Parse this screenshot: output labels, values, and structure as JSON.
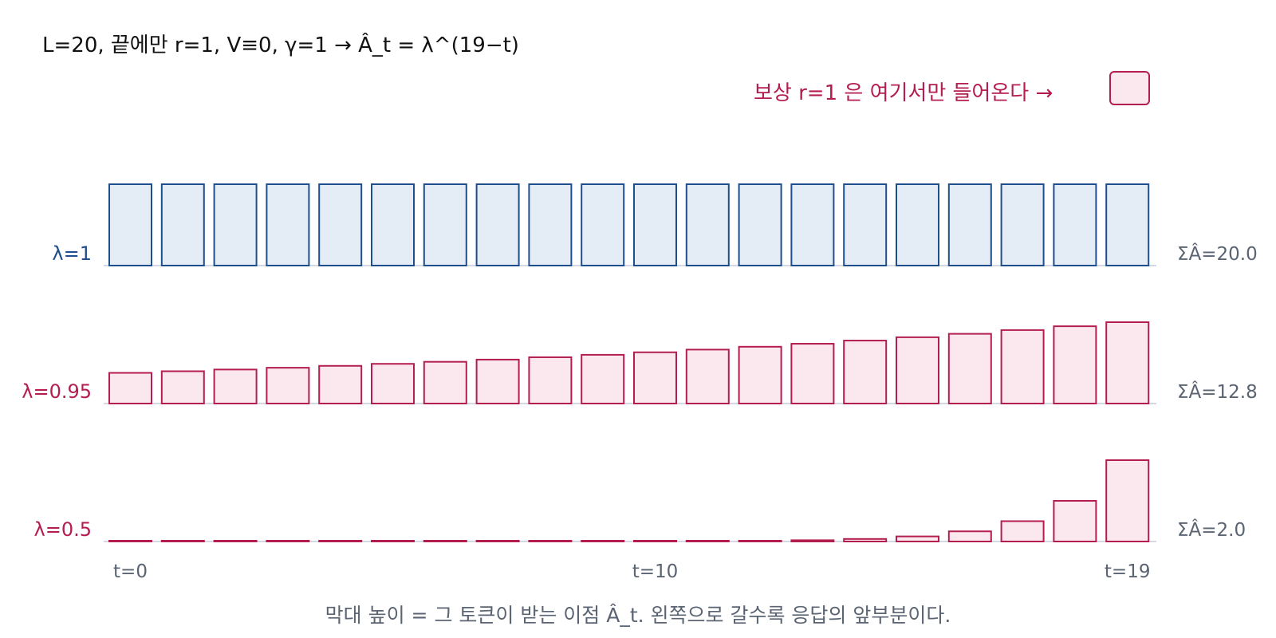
{
  "title": "L=20, 끝에만 r=1, V≡0, γ=1 → Â_t = λ^(19−t)",
  "reward_note": "보상 r=1 은 여기서만 들어온다 →",
  "caption": "막대 높이 = 그 토큰이 받는 이점 Â_t. 왼쪽으로 갈수록 응답의 앞부분이다.",
  "colors": {
    "blue_stroke": "#1f4e8c",
    "blue_fill": "#e4ecf6",
    "red_stroke": "#b41e4f",
    "red_fill": "#fbe7ee",
    "baseline": "#d3d8e2",
    "sum_text": "#5a6472",
    "axis_text": "#5a6472"
  },
  "chart_data": {
    "type": "bar",
    "x": [
      0,
      1,
      2,
      3,
      4,
      5,
      6,
      7,
      8,
      9,
      10,
      11,
      12,
      13,
      14,
      15,
      16,
      17,
      18,
      19
    ],
    "x_tick_labels": [
      {
        "x": 0,
        "label": "t=0"
      },
      {
        "x": 10,
        "label": "t=10"
      },
      {
        "x": 19,
        "label": "t=19"
      }
    ],
    "ylim": [
      0,
      1
    ],
    "grid": false,
    "series": [
      {
        "name": "λ=1",
        "color": "blue",
        "sum_label": "ΣÂ=20.0",
        "values": [
          1,
          1,
          1,
          1,
          1,
          1,
          1,
          1,
          1,
          1,
          1,
          1,
          1,
          1,
          1,
          1,
          1,
          1,
          1,
          1
        ]
      },
      {
        "name": "λ=0.95",
        "color": "red",
        "sum_label": "ΣÂ=12.8",
        "values": [
          0.377,
          0.397,
          0.418,
          0.44,
          0.463,
          0.488,
          0.513,
          0.54,
          0.569,
          0.599,
          0.63,
          0.663,
          0.698,
          0.735,
          0.774,
          0.815,
          0.857,
          0.903,
          0.95,
          1.0
        ]
      },
      {
        "name": "λ=0.5",
        "color": "red",
        "sum_label": "ΣÂ=2.0",
        "values": [
          1.9e-06,
          3.8e-06,
          7.6e-06,
          1.53e-05,
          3.05e-05,
          6.1e-05,
          0.000122,
          0.000244,
          0.000488,
          0.000977,
          0.00195,
          0.0039,
          0.0078,
          0.0156,
          0.03125,
          0.0625,
          0.125,
          0.25,
          0.5,
          1.0
        ]
      }
    ]
  }
}
